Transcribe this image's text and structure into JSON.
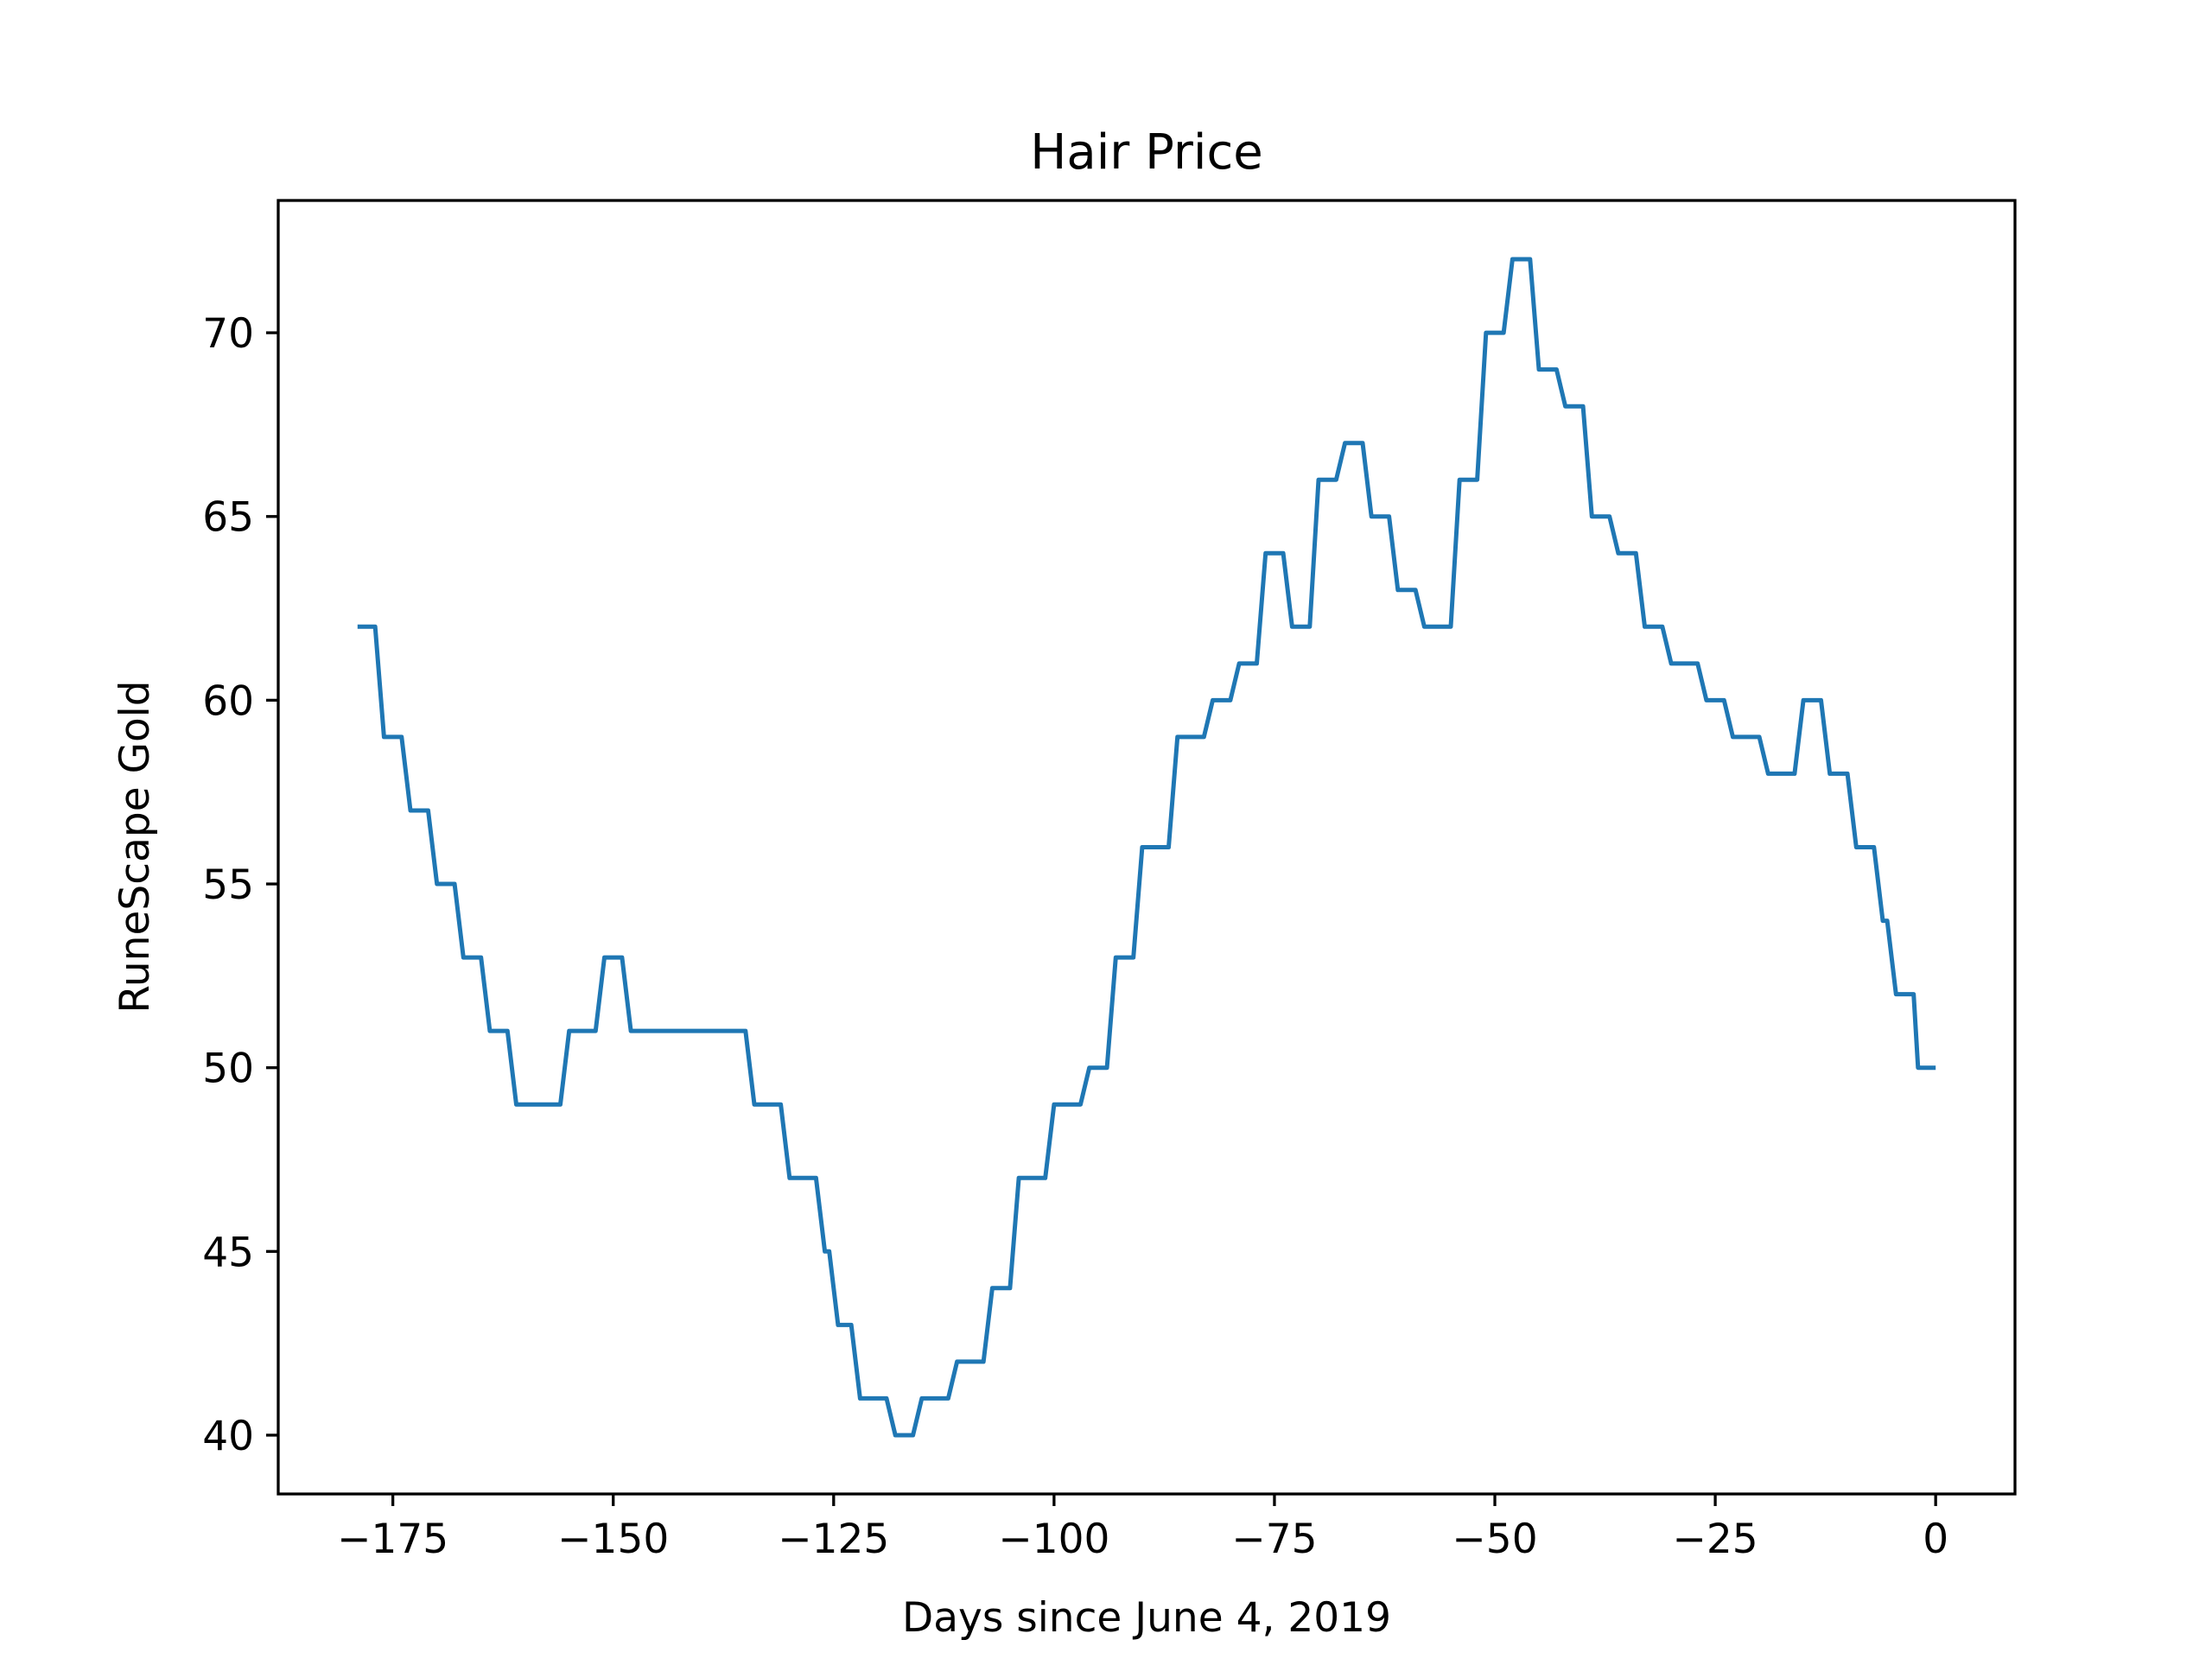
{
  "chart_data": {
    "type": "line",
    "title": "Hair Price",
    "xlabel": "Days since June 4, 2019",
    "ylabel": "RuneScape Gold",
    "xlim": [
      -188,
      9
    ],
    "ylim": [
      38.4,
      73.6
    ],
    "xticks": [
      -175,
      -150,
      -125,
      -100,
      -75,
      -50,
      -25,
      0
    ],
    "xtick_labels": [
      "−175",
      "−150",
      "−125",
      "−100",
      "−75",
      "−50",
      "−25",
      "0"
    ],
    "yticks": [
      40,
      45,
      50,
      55,
      60,
      65,
      70
    ],
    "ytick_labels": [
      "40",
      "45",
      "50",
      "55",
      "60",
      "65",
      "70"
    ],
    "grid": false,
    "legend": "none",
    "series": [
      {
        "color": "#1f77b4",
        "points": [
          [
            -179,
            62
          ],
          [
            -177,
            62
          ],
          [
            -176,
            59
          ],
          [
            -174,
            59
          ],
          [
            -173,
            57
          ],
          [
            -171,
            57
          ],
          [
            -170,
            55
          ],
          [
            -168,
            55
          ],
          [
            -167,
            53
          ],
          [
            -165,
            53
          ],
          [
            -164,
            51
          ],
          [
            -162,
            51
          ],
          [
            -161,
            49
          ],
          [
            -156,
            49
          ],
          [
            -155,
            51
          ],
          [
            -152,
            51
          ],
          [
            -151,
            53
          ],
          [
            -149,
            53
          ],
          [
            -148,
            51
          ],
          [
            -135,
            51
          ],
          [
            -134,
            49
          ],
          [
            -131,
            49
          ],
          [
            -130,
            47
          ],
          [
            -127,
            47
          ],
          [
            -126,
            45
          ],
          [
            -125.5,
            45
          ],
          [
            -124.5,
            43
          ],
          [
            -123,
            43
          ],
          [
            -122,
            41
          ],
          [
            -119,
            41
          ],
          [
            -118,
            40
          ],
          [
            -116,
            40
          ],
          [
            -115,
            41
          ],
          [
            -112,
            41
          ],
          [
            -111,
            42
          ],
          [
            -108,
            42
          ],
          [
            -107,
            44
          ],
          [
            -105,
            44
          ],
          [
            -104,
            47
          ],
          [
            -101,
            47
          ],
          [
            -100,
            49
          ],
          [
            -97,
            49
          ],
          [
            -96,
            50
          ],
          [
            -94,
            50
          ],
          [
            -93,
            53
          ],
          [
            -91,
            53
          ],
          [
            -90,
            56
          ],
          [
            -87,
            56
          ],
          [
            -86,
            59
          ],
          [
            -83,
            59
          ],
          [
            -82,
            60
          ],
          [
            -80,
            60
          ],
          [
            -79,
            61
          ],
          [
            -77,
            61
          ],
          [
            -76,
            64
          ],
          [
            -74,
            64
          ],
          [
            -73,
            62
          ],
          [
            -71,
            62
          ],
          [
            -70,
            66
          ],
          [
            -68,
            66
          ],
          [
            -67,
            67
          ],
          [
            -65,
            67
          ],
          [
            -64,
            65
          ],
          [
            -62,
            65
          ],
          [
            -61,
            63
          ],
          [
            -59,
            63
          ],
          [
            -58,
            62
          ],
          [
            -55,
            62
          ],
          [
            -54,
            66
          ],
          [
            -52,
            66
          ],
          [
            -51,
            70
          ],
          [
            -49,
            70
          ],
          [
            -48,
            72
          ],
          [
            -46,
            72
          ],
          [
            -45,
            69
          ],
          [
            -43,
            69
          ],
          [
            -42,
            68
          ],
          [
            -40,
            68
          ],
          [
            -39,
            65
          ],
          [
            -37,
            65
          ],
          [
            -36,
            64
          ],
          [
            -34,
            64
          ],
          [
            -33,
            62
          ],
          [
            -31,
            62
          ],
          [
            -30,
            61
          ],
          [
            -27,
            61
          ],
          [
            -26,
            60
          ],
          [
            -24,
            60
          ],
          [
            -23,
            59
          ],
          [
            -20,
            59
          ],
          [
            -19,
            58
          ],
          [
            -16,
            58
          ],
          [
            -15,
            60
          ],
          [
            -13,
            60
          ],
          [
            -12,
            58
          ],
          [
            -10,
            58
          ],
          [
            -9,
            56
          ],
          [
            -7,
            56
          ],
          [
            -6,
            54
          ],
          [
            -5.5,
            54
          ],
          [
            -4.5,
            52
          ],
          [
            -2.5,
            52
          ],
          [
            -2,
            50
          ],
          [
            0,
            50
          ]
        ]
      }
    ]
  }
}
